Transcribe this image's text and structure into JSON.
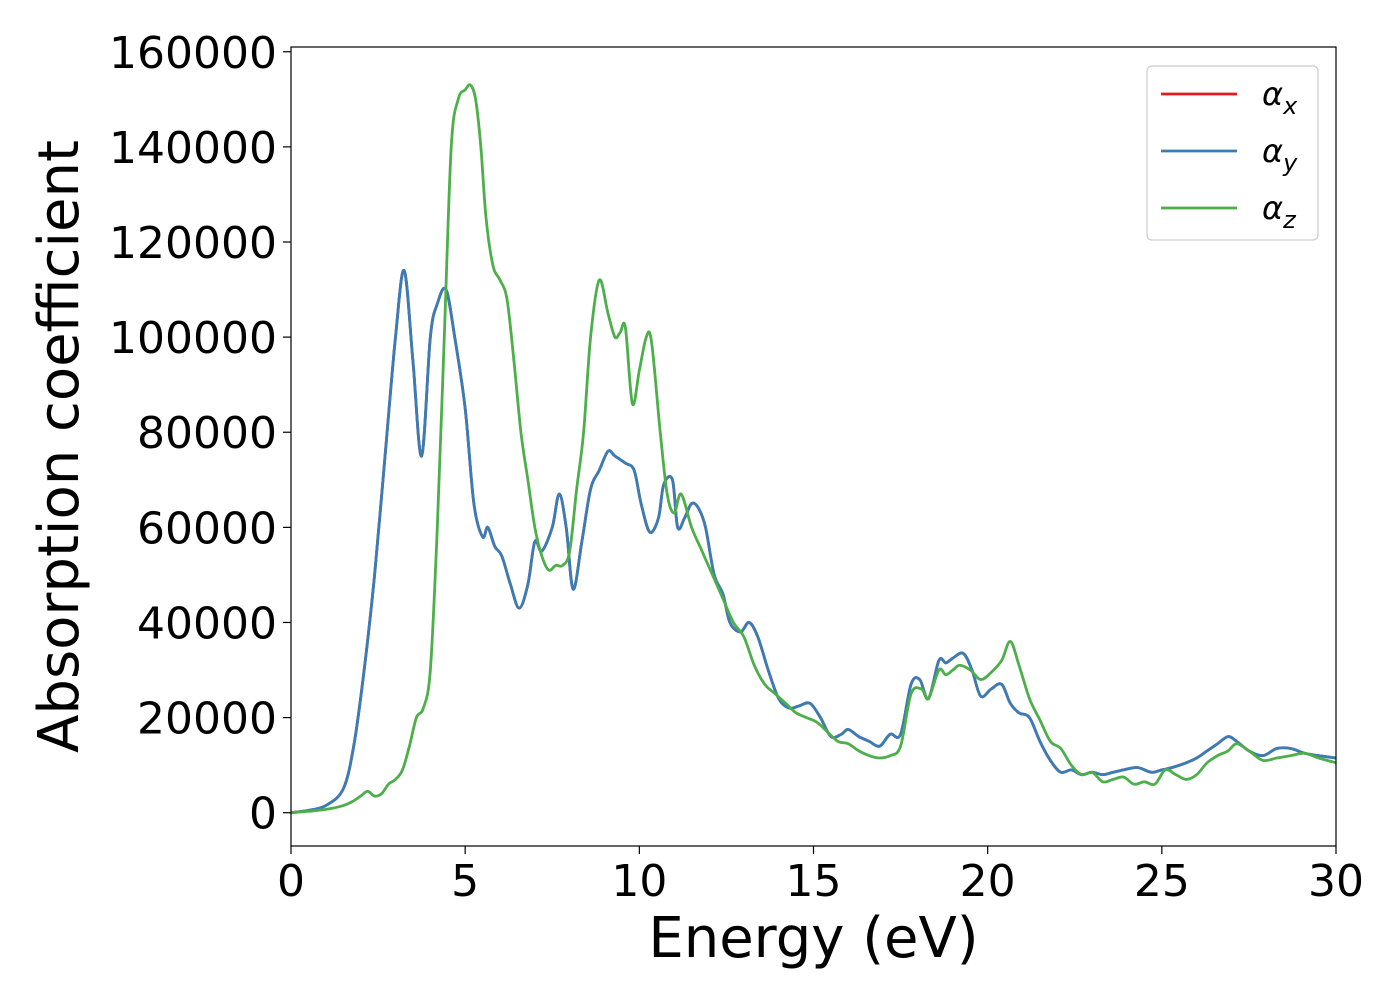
{
  "chart_data": {
    "type": "line",
    "xlabel": "Energy (eV)",
    "ylabel": "Absorption coefficient",
    "xlim": [
      0,
      30
    ],
    "ylim": [
      -7000,
      161000
    ],
    "xticks": [
      0,
      5,
      10,
      15,
      20,
      25,
      30
    ],
    "xtick_labels": [
      "0",
      "5",
      "10",
      "15",
      "20",
      "25",
      "30"
    ],
    "yticks": [
      0,
      20000,
      40000,
      60000,
      80000,
      100000,
      120000,
      140000,
      160000
    ],
    "ytick_labels": [
      "0",
      "20000",
      "40000",
      "60000",
      "80000",
      "100000",
      "120000",
      "140000",
      "160000"
    ],
    "grid": false,
    "legend_position": "upper right",
    "series": [
      {
        "name": "α",
        "subscript": "x",
        "color": "#e41a1c",
        "x": [
          0,
          0.5,
          1,
          1.5,
          1.8,
          2.1,
          2.4,
          2.7,
          3.0,
          3.25,
          3.5,
          3.75,
          4.0,
          4.2,
          4.45,
          4.7,
          5.0,
          5.25,
          5.5,
          5.65,
          5.85,
          6.05,
          6.3,
          6.55,
          6.8,
          7.0,
          7.2,
          7.5,
          7.7,
          7.9,
          8.1,
          8.35,
          8.6,
          8.85,
          9.1,
          9.3,
          9.6,
          9.85,
          10.05,
          10.3,
          10.55,
          10.7,
          10.95,
          11.1,
          11.3,
          11.5,
          11.7,
          11.9,
          12.15,
          12.4,
          12.6,
          12.9,
          13.15,
          13.4,
          13.7,
          14.0,
          14.3,
          14.6,
          14.9,
          15.2,
          15.5,
          15.8,
          16.0,
          16.3,
          16.6,
          16.9,
          17.2,
          17.5,
          17.8,
          18.05,
          18.3,
          18.6,
          18.8,
          19.0,
          19.3,
          19.55,
          19.8,
          20.1,
          20.4,
          20.65,
          20.9,
          21.2,
          21.5,
          21.8,
          22.1,
          22.4,
          22.7,
          23.0,
          23.3,
          23.6,
          23.9,
          24.3,
          24.7,
          25.0,
          25.3,
          25.7,
          26.0,
          26.3,
          26.6,
          26.9,
          27.15,
          27.5,
          27.9,
          28.3,
          28.7,
          29.1,
          29.5,
          30.0
        ],
        "y": [
          0,
          500,
          1500,
          5000,
          14000,
          30000,
          50000,
          75000,
          100000,
          114000,
          95000,
          75000,
          100000,
          107000,
          110000,
          100000,
          85000,
          65000,
          58000,
          60000,
          56000,
          54000,
          48000,
          43000,
          48000,
          57000,
          55000,
          60000,
          67000,
          60000,
          47000,
          57000,
          68000,
          72000,
          76000,
          75000,
          73500,
          72000,
          65000,
          59000,
          62000,
          69000,
          70000,
          60000,
          62000,
          65000,
          64000,
          60000,
          50000,
          46000,
          40000,
          38000,
          40000,
          37000,
          30000,
          24000,
          22000,
          22500,
          23000,
          20000,
          16000,
          16500,
          17500,
          16000,
          15000,
          14000,
          16500,
          16500,
          27000,
          28000,
          24000,
          32000,
          31500,
          32500,
          33500,
          30000,
          24500,
          26000,
          27000,
          23000,
          21000,
          20000,
          15000,
          11000,
          8500,
          9000,
          8000,
          8500,
          8000,
          8500,
          9000,
          9500,
          8500,
          9000,
          9500,
          10500,
          11500,
          13000,
          14500,
          16000,
          15000,
          13000,
          12000,
          13500,
          13500,
          12500,
          12000,
          11500
        ]
      },
      {
        "name": "α",
        "subscript": "y",
        "color": "#377eb8",
        "x": [
          0,
          0.5,
          1,
          1.5,
          1.8,
          2.1,
          2.4,
          2.7,
          3.0,
          3.25,
          3.5,
          3.75,
          4.0,
          4.2,
          4.45,
          4.7,
          5.0,
          5.25,
          5.5,
          5.65,
          5.85,
          6.05,
          6.3,
          6.55,
          6.8,
          7.0,
          7.2,
          7.5,
          7.7,
          7.9,
          8.1,
          8.35,
          8.6,
          8.85,
          9.1,
          9.3,
          9.6,
          9.85,
          10.05,
          10.3,
          10.55,
          10.7,
          10.95,
          11.1,
          11.3,
          11.5,
          11.7,
          11.9,
          12.15,
          12.4,
          12.6,
          12.9,
          13.15,
          13.4,
          13.7,
          14.0,
          14.3,
          14.6,
          14.9,
          15.2,
          15.5,
          15.8,
          16.0,
          16.3,
          16.6,
          16.9,
          17.2,
          17.5,
          17.8,
          18.05,
          18.3,
          18.6,
          18.8,
          19.0,
          19.3,
          19.55,
          19.8,
          20.1,
          20.4,
          20.65,
          20.9,
          21.2,
          21.5,
          21.8,
          22.1,
          22.4,
          22.7,
          23.0,
          23.3,
          23.6,
          23.9,
          24.3,
          24.7,
          25.0,
          25.3,
          25.7,
          26.0,
          26.3,
          26.6,
          26.9,
          27.15,
          27.5,
          27.9,
          28.3,
          28.7,
          29.1,
          29.5,
          30.0
        ],
        "y": [
          0,
          500,
          1500,
          5000,
          14000,
          30000,
          50000,
          75000,
          100000,
          114000,
          95000,
          75000,
          100000,
          107000,
          110000,
          100000,
          85000,
          65000,
          58000,
          60000,
          56000,
          54000,
          48000,
          43000,
          48000,
          57000,
          55000,
          60000,
          67000,
          60000,
          47000,
          57000,
          68000,
          72000,
          76000,
          75000,
          73500,
          72000,
          65000,
          59000,
          62000,
          69000,
          70000,
          60000,
          62000,
          65000,
          64000,
          60000,
          50000,
          46000,
          40000,
          38000,
          40000,
          37000,
          30000,
          24000,
          22000,
          22500,
          23000,
          20000,
          16000,
          16500,
          17500,
          16000,
          15000,
          14000,
          16500,
          16500,
          27000,
          28000,
          24000,
          32000,
          31500,
          32500,
          33500,
          30000,
          24500,
          26000,
          27000,
          23000,
          21000,
          20000,
          15000,
          11000,
          8500,
          9000,
          8000,
          8500,
          8000,
          8500,
          9000,
          9500,
          8500,
          9000,
          9500,
          10500,
          11500,
          13000,
          14500,
          16000,
          15000,
          13000,
          12000,
          13500,
          13500,
          12500,
          12000,
          11500
        ]
      },
      {
        "name": "α",
        "subscript": "z",
        "color": "#4daf4a",
        "x": [
          0,
          0.5,
          1,
          1.5,
          1.8,
          2.0,
          2.2,
          2.4,
          2.6,
          2.8,
          3.0,
          3.2,
          3.4,
          3.6,
          3.8,
          4.0,
          4.2,
          4.4,
          4.6,
          4.8,
          5.0,
          5.15,
          5.3,
          5.45,
          5.6,
          5.8,
          6.0,
          6.2,
          6.4,
          6.6,
          6.8,
          7.0,
          7.2,
          7.4,
          7.6,
          7.8,
          8.0,
          8.2,
          8.4,
          8.6,
          8.85,
          9.1,
          9.3,
          9.45,
          9.6,
          9.8,
          10.0,
          10.2,
          10.35,
          10.6,
          10.8,
          11.0,
          11.2,
          11.5,
          11.8,
          12.1,
          12.4,
          12.7,
          13.0,
          13.3,
          13.6,
          13.9,
          14.2,
          14.5,
          14.8,
          15.1,
          15.4,
          15.7,
          16.0,
          16.3,
          16.6,
          16.9,
          17.2,
          17.5,
          17.8,
          18.1,
          18.3,
          18.6,
          18.8,
          19.0,
          19.2,
          19.5,
          19.8,
          20.1,
          20.4,
          20.65,
          20.9,
          21.2,
          21.5,
          21.8,
          22.1,
          22.4,
          22.7,
          23.0,
          23.3,
          23.6,
          23.9,
          24.2,
          24.5,
          24.8,
          25.1,
          25.4,
          25.7,
          26.0,
          26.3,
          26.6,
          26.9,
          27.15,
          27.5,
          27.9,
          28.3,
          28.7,
          29.1,
          29.5,
          30.0
        ],
        "y": [
          0,
          300,
          700,
          1500,
          2500,
          3500,
          4500,
          3500,
          4000,
          6000,
          7000,
          9000,
          14000,
          20000,
          22000,
          30000,
          60000,
          100000,
          140000,
          150000,
          152000,
          153000,
          150000,
          140000,
          125000,
          115000,
          112000,
          108000,
          95000,
          80000,
          70000,
          60000,
          54000,
          51000,
          52000,
          52000,
          55000,
          68000,
          80000,
          100000,
          112000,
          105000,
          100000,
          101000,
          102000,
          86000,
          93000,
          100000,
          99000,
          80000,
          67000,
          63000,
          67000,
          60000,
          55000,
          50000,
          45000,
          40000,
          37000,
          31000,
          27000,
          25000,
          23000,
          21000,
          20000,
          19000,
          17000,
          15000,
          14500,
          13000,
          12000,
          11500,
          12000,
          14000,
          25000,
          26000,
          24000,
          30000,
          29000,
          30000,
          31000,
          30000,
          28000,
          29500,
          32000,
          36000,
          31000,
          24000,
          19500,
          15000,
          13500,
          10000,
          8000,
          8500,
          6500,
          7000,
          7500,
          6000,
          6500,
          6000,
          9000,
          8000,
          7000,
          8000,
          10500,
          12000,
          13000,
          14500,
          13000,
          11000,
          11500,
          12000,
          12500,
          11500,
          10500
        ]
      }
    ]
  }
}
